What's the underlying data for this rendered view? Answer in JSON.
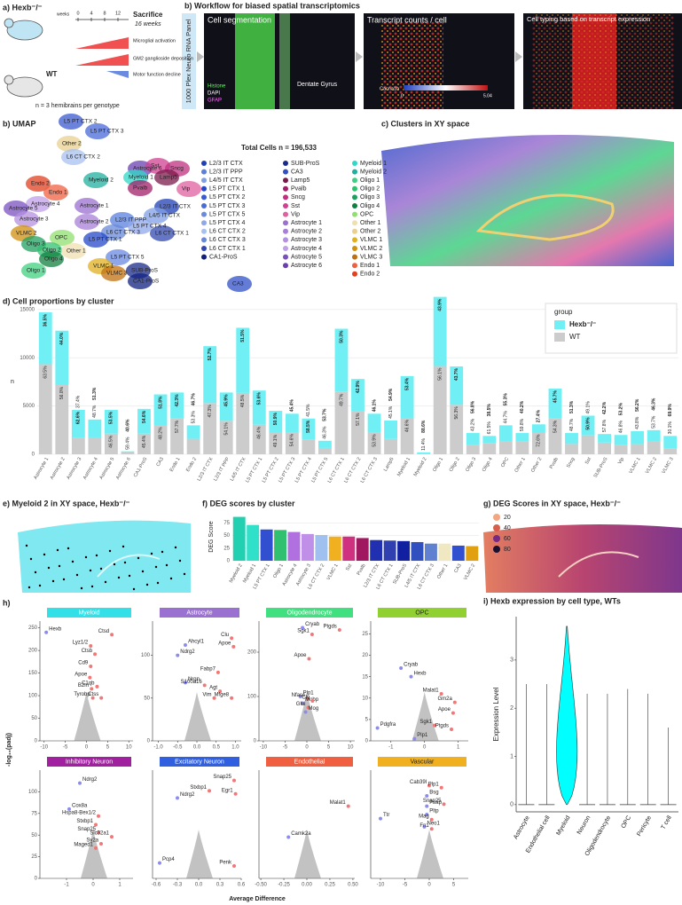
{
  "panel_a": {
    "title": "a) Hexb⁻/⁻",
    "weeks": "weeks",
    "timepoints": [
      "0",
      "4",
      "8",
      "12"
    ],
    "sacrifice": "Sacrifice",
    "sacrifice_age": "16 weeks",
    "phenotypes": [
      "Microglial activation",
      "GM2 ganglioside deposition",
      "Motor function decline"
    ],
    "control": "WT",
    "sample_size": "n = 3 hemibrains per genotype"
  },
  "panel_b": {
    "title": "b)  Workflow for biased spatial transcriptomics",
    "panel_name": "1000 Plex Neuro RNA Panel",
    "steps": [
      "Cell segmentation",
      "Transcript counts / cell",
      "Cell typing based on transcript expression"
    ],
    "stains": [
      "Histone",
      "DAPI",
      "GFAP"
    ],
    "region": "Dentate Gyrus",
    "gene": "Cacna1b",
    "scale_min": "0",
    "scale_max": "5.04"
  },
  "umap": {
    "title": "b) UMAP",
    "total": "Total Cells n = 196,533",
    "legend": [
      {
        "name": "L2/3 IT CTX",
        "color": "#1f3fb5"
      },
      {
        "name": "L2/3 IT PPP",
        "color": "#5a7fdc"
      },
      {
        "name": "L4/5 IT CTX",
        "color": "#7f9fe6"
      },
      {
        "name": "L5 PT CTX 1",
        "color": "#2448c8"
      },
      {
        "name": "L5 PT CTX 2",
        "color": "#3a5ad0"
      },
      {
        "name": "L5 PT CTX 3",
        "color": "#4a6ad8"
      },
      {
        "name": "L5 PT CTX 5",
        "color": "#6a8ae0"
      },
      {
        "name": "L5 PT CTX 4",
        "color": "#90a8ea"
      },
      {
        "name": "L6 CT CTX 2",
        "color": "#a8c0f0"
      },
      {
        "name": "L6 CT CTX 3",
        "color": "#6888d8"
      },
      {
        "name": "L6 CT CTX 1",
        "color": "#3048b0"
      },
      {
        "name": "CA1-ProS",
        "color": "#102080"
      },
      {
        "name": "SUB-ProS",
        "color": "#1a2a8a"
      },
      {
        "name": "CA3",
        "color": "#3050c8"
      },
      {
        "name": "Lamp5",
        "color": "#7a1a4a"
      },
      {
        "name": "Pvalb",
        "color": "#a0206a"
      },
      {
        "name": "Sncg",
        "color": "#c03080"
      },
      {
        "name": "Sst",
        "color": "#d04090"
      },
      {
        "name": "Vip",
        "color": "#e060a0"
      },
      {
        "name": "Astrocyte 1",
        "color": "#9a70d0"
      },
      {
        "name": "Astrocyte 2",
        "color": "#a880d8"
      },
      {
        "name": "Astrocyte 3",
        "color": "#b490e0"
      },
      {
        "name": "Astrocyte 4",
        "color": "#c0a0e8"
      },
      {
        "name": "Astrocyte 5",
        "color": "#7a50c0"
      },
      {
        "name": "Astrocyte 6",
        "color": "#6a40b0"
      },
      {
        "name": "Myeloid 1",
        "color": "#30d8c8"
      },
      {
        "name": "Myeloid 2",
        "color": "#20b0a0"
      },
      {
        "name": "Oligo 1",
        "color": "#40d080"
      },
      {
        "name": "Oligo 2",
        "color": "#30c070"
      },
      {
        "name": "Oligo 3",
        "color": "#20a060"
      },
      {
        "name": "Oligo 4",
        "color": "#108040"
      },
      {
        "name": "OPC",
        "color": "#90e070"
      },
      {
        "name": "Other 1",
        "color": "#f0e0b0"
      },
      {
        "name": "Other 2",
        "color": "#e8d090"
      },
      {
        "name": "VLMC 1",
        "color": "#e0b020"
      },
      {
        "name": "VLMC 2",
        "color": "#d09010"
      },
      {
        "name": "VLMC 3",
        "color": "#c07010"
      },
      {
        "name": "Endo 1",
        "color": "#f06040"
      },
      {
        "name": "Endo 2",
        "color": "#e04020"
      }
    ],
    "labels": [
      "L5 PT CTX 2",
      "L5 PT CTX 3",
      "Other 2",
      "L6 CT CTX 2",
      "Astrocyte 6",
      "Sst",
      "Sncg",
      "Myeloid 1",
      "Lamp5",
      "Endo 2",
      "Myeloid 2",
      "Endo 1",
      "Pvalb",
      "Vip",
      "Astrocyte 4",
      "Astrocyte 1",
      "L2/3 IT CTX",
      "L4/5 IT CTX",
      "Astrocyte 5",
      "Astrocyte 3",
      "Astrocyte 2",
      "L2/3 IT PPP",
      "L5 PT CTX 4",
      "L6 CT CTX 1",
      "L6 CT CTX 3",
      "VLMC 2",
      "OPC",
      "L5 PT CTX 1",
      "Oligo 3",
      "Oligo 2",
      "Other 1",
      "L5 PT CTX 5",
      "Oligo 4",
      "VLMC 1",
      "Oligo 1",
      "VLMC 3",
      "SUB-ProS",
      "CA1-ProS",
      "CA3"
    ]
  },
  "panel_c": {
    "title": "c) Clusters in XY space"
  },
  "panel_e": {
    "title": "e) Myeloid 2 in XY space, Hexb⁻/⁻"
  },
  "panel_g": {
    "title": "g) DEG Scores in XY space, Hexb⁻/⁻",
    "legend": [
      20,
      40,
      60,
      80
    ],
    "legend_colors": [
      "#f4a582",
      "#d6604d",
      "#762a83",
      "#1a1030"
    ]
  },
  "panel_h": {
    "label": "h)",
    "y_label": "-log₁₀(padj)",
    "x_label": "Average Difference"
  },
  "chart_data": [
    {
      "type": "stacked-bar",
      "title": "d) Cell proportions by cluster",
      "y_label": "n",
      "legend_title": "group",
      "grid": true,
      "categories": [
        "Astrocyte 1",
        "Astrocyte 2",
        "Astrocyte 3",
        "Astrocyte 4",
        "Astrocyte 5",
        "Astrocyte 6",
        "CA1-ProS",
        "CA3",
        "Endo 1",
        "Endo 2",
        "L2/3 IT CTX",
        "L2/3 IT PPP",
        "L4/5 IT CTX",
        "L5 PT CTX 1",
        "L5 PT CTX 2",
        "L5 PT CTX 3",
        "L5 PT CTX 4",
        "L5 PT CTX 5",
        "L6 CT CTX 1",
        "L6 CT CTX 2",
        "L6 CT CTX 3",
        "Lamp5",
        "Myeloid 1",
        "Myeloid 2",
        "Oligo 1",
        "Oligo 2",
        "Oligo 3",
        "Oligo 4",
        "OPC",
        "Other 1",
        "Other 2",
        "Pvalb",
        "Sncg",
        "Sst",
        "SUB-ProS",
        "Vip",
        "VLMC 1",
        "VLMC 2",
        "VLMC 3"
      ],
      "series": [
        {
          "name": "WT",
          "color": "#cccccc",
          "values": [
            9330,
            7170,
            1720,
            1750,
            2140,
            180,
            2130,
            2990,
            3690,
            1600,
            5300,
            3460,
            6350,
            3060,
            2210,
            2290,
            1540,
            650,
            6460,
            4450,
            2260,
            1580,
            3770,
            23,
            9140,
            5120,
            950,
            1170,
            1340,
            1320,
            2250,
            3690,
            1070,
            1960,
            1210,
            940,
            1050,
            1340,
            570
          ],
          "labels": [
            "63.5%",
            "56.0%",
            "37.4%",
            "48.7%",
            "46.5%",
            "59.4%",
            "45.4%",
            "48.2%",
            "57.7%",
            "53.3%",
            "47.3%",
            "54.1%",
            "48.5%",
            "46.4%",
            "49.1%",
            "54.6%",
            "41.5%",
            "46.3%",
            "49.7%",
            "57.1%",
            "53.9%",
            "45.1%",
            "46.6%",
            "11.4%",
            "56.1%",
            "56.3%",
            "43.2%",
            "61.5%",
            "44.7%",
            "59.8%",
            "72.6%",
            "54.3%",
            "48.7%",
            "49.1%",
            "57.8%",
            "46.8%",
            "43.8%",
            "53.7%",
            "30.1%"
          ]
        },
        {
          "name": "Hexb⁻/⁻",
          "color": "#70f0f4",
          "values": [
            5370,
            5630,
            2880,
            1850,
            2460,
            120,
            2570,
            3210,
            2710,
            1400,
            5900,
            2940,
            6750,
            3540,
            2290,
            1910,
            2160,
            750,
            6540,
            3350,
            1940,
            1920,
            4330,
            177,
            7160,
            3980,
            1250,
            730,
            1660,
            880,
            850,
            3110,
            1130,
            2040,
            890,
            1060,
            1350,
            1160,
            1330
          ],
          "labels": [
            "36.5%",
            "44.0%",
            "62.6%",
            "51.3%",
            "53.5%",
            "40.6%",
            "54.6%",
            "51.8%",
            "42.3%",
            "46.7%",
            "52.7%",
            "45.9%",
            "51.5%",
            "53.6%",
            "50.9%",
            "45.4%",
            "58.5%",
            "53.7%",
            "50.3%",
            "42.9%",
            "46.1%",
            "54.9%",
            "53.4%",
            "88.6%",
            "43.9%",
            "43.7%",
            "56.8%",
            "38.5%",
            "55.3%",
            "40.2%",
            "27.4%",
            "45.7%",
            "51.3%",
            "50.9%",
            "42.2%",
            "53.2%",
            "56.2%",
            "46.3%",
            "69.9%"
          ]
        }
      ],
      "ylim": [
        0,
        17000
      ],
      "yticks": [
        0,
        5000,
        10000,
        15000
      ]
    },
    {
      "type": "bar",
      "title": "f) DEG scores by cluster",
      "y_label": "DEG Score",
      "categories": [
        "Myeloid 2",
        "Myeloid 1",
        "L5 PT CTX 1",
        "Oligo 1",
        "Astrocyte 4",
        "Astrocyte 3",
        "L6 CT CTX 2",
        "VLMC 1",
        "Sst",
        "Pvalb",
        "L2/3 IT CTX",
        "L6 CT CTX 1",
        "SUB-ProS",
        "L4/5 IT CTX",
        "L6 CT CTX 3",
        "Other 1",
        "CA3",
        "VLMC 2"
      ],
      "values": [
        87,
        71,
        62,
        61,
        57,
        53,
        51,
        48,
        48,
        45,
        41,
        40,
        39,
        37,
        34,
        34,
        30,
        29
      ],
      "colors": [
        "#20d0b0",
        "#30e0c8",
        "#3050d0",
        "#30c070",
        "#b070e0",
        "#c090e8",
        "#a0c0f0",
        "#f0b020",
        "#d03080",
        "#a01860",
        "#2030b0",
        "#3040b0",
        "#1020a0",
        "#3050c0",
        "#6080d0",
        "#f0e8c0",
        "#3050d0",
        "#e0a010"
      ],
      "ylim": [
        0,
        95
      ],
      "yticks": [
        0,
        25,
        50,
        75
      ]
    },
    {
      "type": "violin",
      "title": "i) Hexb expression by cell type, WTs",
      "y_label": "Expression Level",
      "color": "#00ffff",
      "categories": [
        "Astrocyte",
        "Endothelial cell",
        "Myeloid",
        "Neuron",
        "Oligodendrocyte",
        "OPC",
        "Pericyte",
        "T cell"
      ],
      "values": [
        2.5,
        2.5,
        3.7,
        2.3,
        2.3,
        2.4,
        2.3,
        1.6
      ],
      "ylim": [
        -0.15,
        3.9
      ],
      "yticks": [
        0,
        1,
        2,
        3
      ]
    },
    {
      "type": "scatter",
      "title": "Myeloid",
      "title_color": "#33e0e8",
      "xlim": [
        -11,
        11
      ],
      "xticks": [
        -10,
        -5,
        0,
        5,
        10
      ],
      "ylim": [
        0,
        265
      ],
      "yticks": [
        0,
        50,
        100,
        150,
        200,
        250
      ],
      "labels": [
        "Hexb",
        "Ctsd",
        "Lyz1/2",
        "Ctsb",
        "Cd9",
        "Apoe",
        "C1qb",
        "B2m",
        "Tyrobp",
        "Ctss"
      ],
      "x": [
        -9.5,
        6,
        1,
        2,
        1,
        0.8,
        2.5,
        1.2,
        1.5,
        3.5
      ],
      "y": [
        240,
        235,
        210,
        192,
        165,
        140,
        120,
        115,
        95,
        95
      ]
    },
    {
      "type": "scatter",
      "title": "Astrocyte",
      "title_color": "#9a70d0",
      "xlim": [
        -1.15,
        1.15
      ],
      "xticks": [
        {
          "value": -1,
          "label": "-1.0"
        },
        -0.5,
        {
          "value": 0,
          "label": "0.0"
        },
        0.5,
        {
          "value": 1,
          "label": "1.0"
        }
      ],
      "ylim": [
        0,
        140
      ],
      "yticks": [
        0,
        50,
        100
      ],
      "labels": [
        "Clu",
        "Apoe",
        "Ahcyl1",
        "Ndrg2",
        "Fabp7",
        "Nrgn",
        "S100a16",
        "Agt",
        "Vim",
        "Mfge8"
      ],
      "x": [
        0.9,
        0.95,
        -0.3,
        -0.5,
        0.55,
        -0.3,
        0.2,
        0.6,
        0.45,
        0.9
      ],
      "y": [
        120,
        110,
        112,
        100,
        80,
        68,
        65,
        58,
        50,
        50
      ]
    },
    {
      "type": "scatter",
      "title": "Oligodendrocyte",
      "title_color": "#40e080",
      "xlim": [
        -11,
        11
      ],
      "xticks": [
        -10,
        -5,
        0,
        5,
        10
      ],
      "ylim": [
        0,
        270
      ],
      "yticks": [
        0,
        100,
        200
      ],
      "labels": [
        "Cryab",
        "Sgk1",
        "Ptgds",
        "Apoe",
        "Plp1",
        "Nfasc",
        "Mobp",
        "Clu",
        "Glul",
        "Mog"
      ],
      "x": [
        -1,
        1.2,
        7.5,
        0.5,
        -1.5,
        0.2,
        -1,
        1.3,
        0.3,
        -0.3
      ],
      "y": [
        255,
        240,
        250,
        185,
        100,
        95,
        85,
        90,
        75,
        65
      ]
    },
    {
      "type": "scatter",
      "title": "OPC",
      "title_color": "#90d030",
      "xlim": [
        -1.6,
        1.3
      ],
      "xticks": [
        -1,
        0,
        1
      ],
      "ylim": [
        0,
        28
      ],
      "yticks": [
        0,
        5,
        10,
        15,
        20,
        25
      ],
      "labels": [
        "Cryab",
        "Hexb",
        "Malat1",
        "Gm2a",
        "Apoe",
        "Sgk1",
        "Pdgfra",
        "Ptgds",
        "Plp1"
      ],
      "x": [
        -0.7,
        -0.4,
        0.5,
        0.9,
        0.85,
        0.3,
        -1.4,
        0.8,
        -0.3
      ],
      "y": [
        17,
        15,
        11,
        9,
        6.5,
        3.6,
        3,
        2.7,
        0.5
      ]
    },
    {
      "type": "scatter",
      "title": "Inhibitory Neuron",
      "title_color": "#a020a0",
      "xlim": [
        -2,
        1.5
      ],
      "xticks": [
        -1,
        0,
        1
      ],
      "ylim": [
        0,
        125
      ],
      "yticks": [
        0,
        25,
        50,
        75,
        100
      ],
      "labels": [
        "Ndrg2",
        "Cox8a",
        "Hspa8-Bex1/2",
        "Stxbp1",
        "Snap25",
        "Slc32a1",
        "Sv2a",
        "Maged1"
      ],
      "x": [
        -0.5,
        -0.9,
        0.2,
        0.1,
        0.2,
        0.7,
        0.3,
        0.1
      ],
      "y": [
        110,
        80,
        72,
        62,
        53,
        48,
        40,
        35
      ]
    },
    {
      "type": "scatter",
      "title": "Excitatory Neuron",
      "title_color": "#3060e0",
      "xlim": [
        -0.65,
        0.6
      ],
      "xticks": [
        -0.6,
        -0.3,
        {
          "value": 0,
          "label": "0.0"
        },
        0.3,
        0.6
      ],
      "ylim": [
        0,
        105
      ],
      "labels": [
        "Snap25",
        "Stxbp1",
        "Egr1",
        "Ndrg2",
        "Pcp4",
        "Penk"
      ],
      "x": [
        0.5,
        0.15,
        0.52,
        -0.3,
        -0.55,
        0.5
      ],
      "y": [
        95,
        85,
        82,
        78,
        15,
        12
      ]
    },
    {
      "type": "scatter",
      "title": "Endothelial",
      "title_color": "#f06040",
      "xlim": [
        -0.52,
        0.52
      ],
      "xticks": [
        {
          "value": -0.5,
          "label": "-0.50"
        },
        {
          "value": -0.25,
          "label": "-0.25"
        },
        {
          "value": 0,
          "label": "0.00"
        },
        0.25,
        {
          "value": 0.5,
          "label": "0.50"
        }
      ],
      "ylim": [
        0,
        105
      ],
      "labels": [
        "Malat1",
        "Camk2a"
      ],
      "x": [
        0.45,
        -0.2
      ],
      "y": [
        70,
        40
      ]
    },
    {
      "type": "scatter",
      "title": "Vascular",
      "title_color": "#f0b020",
      "xlim": [
        -12,
        8
      ],
      "xticks": [
        -10,
        -5,
        0,
        5
      ],
      "ylim": [
        0,
        105
      ],
      "labels": [
        "Cab39l",
        "Plp1",
        "Bsg",
        "Psap",
        "Snap25",
        "Pltp",
        "Mag",
        "Ttr",
        "Neo1",
        "Fn1"
      ],
      "x": [
        0,
        2.5,
        -0.5,
        -0.5,
        3,
        -0.5,
        0.5,
        -10,
        -1,
        0.5
      ],
      "y": [
        90,
        88,
        80,
        70,
        72,
        62,
        57,
        58,
        50,
        48
      ]
    }
  ]
}
